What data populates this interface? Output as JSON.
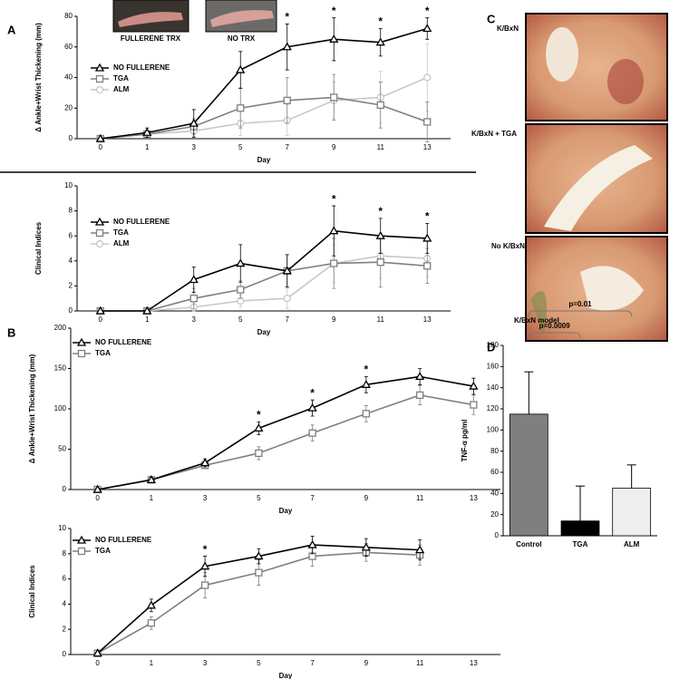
{
  "panel_labels": [
    "A",
    "B",
    "C",
    "D"
  ],
  "photo_labels": [
    "FULLERENE TRX",
    "NO TRX"
  ],
  "histology_labels": [
    "K/BxN",
    "K/BxN + TGA",
    "No K/BxN"
  ],
  "chart_data": [
    {
      "type": "line",
      "xlabel": "Day",
      "ylabel": "Δ Ankle+Wrist Thickening (mm)",
      "categories": [
        "0",
        "1",
        "3",
        "5",
        "7",
        "9",
        "11",
        "13"
      ],
      "ylim": [
        0,
        80
      ],
      "yticks": [
        0,
        20,
        40,
        60,
        80
      ],
      "legend": "upper left",
      "series": [
        {
          "name": "NO FULLERENE",
          "color": "#000000",
          "marker": "triangle",
          "values": [
            0,
            4,
            10,
            45,
            60,
            65,
            63,
            72
          ],
          "errors": [
            0,
            3,
            9,
            12,
            15,
            14,
            9,
            7
          ]
        },
        {
          "name": "TGA",
          "color": "#808080",
          "marker": "square",
          "values": [
            0,
            3,
            8,
            20,
            25,
            27,
            22,
            11
          ],
          "errors": [
            0,
            2,
            5,
            13,
            15,
            15,
            15,
            13
          ]
        },
        {
          "name": "ALM",
          "color": "#c8c8c8",
          "marker": "circle",
          "values": [
            0,
            3,
            5,
            10,
            12,
            25,
            27,
            40
          ],
          "errors": [
            0,
            2,
            4,
            8,
            10,
            12,
            17,
            22
          ]
        }
      ],
      "annotations": [
        {
          "text": "*",
          "x": "7"
        },
        {
          "text": "*",
          "x": "9"
        },
        {
          "text": "*",
          "x": "11"
        },
        {
          "text": "*",
          "x": "13"
        }
      ]
    },
    {
      "type": "line",
      "xlabel": "Day",
      "ylabel": "Clinical Indices",
      "categories": [
        "0",
        "1",
        "3",
        "5",
        "7",
        "9",
        "11",
        "13"
      ],
      "ylim": [
        0,
        10
      ],
      "yticks": [
        0,
        2,
        4,
        6,
        8,
        10
      ],
      "legend": "upper left",
      "series": [
        {
          "name": "NO FULLERENE",
          "color": "#000000",
          "marker": "triangle",
          "values": [
            0,
            0,
            2.5,
            3.8,
            3.2,
            6.4,
            6.0,
            5.8
          ],
          "errors": [
            0,
            0,
            1,
            1.5,
            1.3,
            2,
            1.4,
            1.2
          ]
        },
        {
          "name": "TGA",
          "color": "#808080",
          "marker": "square",
          "values": [
            0,
            0,
            1,
            1.7,
            3.2,
            3.8,
            3.9,
            3.6
          ],
          "errors": [
            0,
            0,
            0.8,
            0.7,
            1.3,
            2,
            2,
            1.4
          ]
        },
        {
          "name": "ALM",
          "color": "#c8c8c8",
          "marker": "circle",
          "values": [
            0,
            0,
            0.3,
            0.8,
            1,
            3.8,
            4.4,
            4.2
          ],
          "errors": [
            0,
            0,
            0.3,
            0.5,
            0.8,
            1.5,
            1.8,
            1.5
          ]
        }
      ],
      "annotations": [
        {
          "text": "*",
          "x": "9"
        },
        {
          "text": "*",
          "x": "11"
        },
        {
          "text": "*",
          "x": "13"
        }
      ]
    },
    {
      "type": "line",
      "xlabel": "Day",
      "ylabel": "Δ Ankle+Wrist Thickening (mm)",
      "categories": [
        "0",
        "1",
        "3",
        "5",
        "7",
        "9",
        "11",
        "13"
      ],
      "ylim": [
        0,
        200
      ],
      "yticks": [
        0,
        50,
        100,
        150,
        200
      ],
      "legend": "upper left",
      "series": [
        {
          "name": "NO FULLERENE",
          "color": "#000000",
          "marker": "triangle",
          "values": [
            0,
            12,
            33,
            76,
            101,
            130,
            140,
            128
          ],
          "errors": [
            0,
            3,
            5,
            8,
            10,
            10,
            10,
            10
          ]
        },
        {
          "name": "TGA",
          "color": "#808080",
          "marker": "square",
          "values": [
            0,
            12,
            30,
            45,
            70,
            94,
            117,
            105
          ],
          "errors": [
            0,
            3,
            4,
            8,
            10,
            10,
            12,
            12
          ]
        }
      ],
      "annotations": [
        {
          "text": "*",
          "x": "5"
        },
        {
          "text": "*",
          "x": "7"
        },
        {
          "text": "*",
          "x": "9"
        }
      ]
    },
    {
      "type": "line",
      "xlabel": "Day",
      "ylabel": "Clinical Indices",
      "categories": [
        "0",
        "1",
        "3",
        "5",
        "7",
        "9",
        "11",
        "13"
      ],
      "ylim": [
        0,
        10
      ],
      "yticks": [
        0,
        2,
        4,
        6,
        8,
        10
      ],
      "legend": "upper left",
      "series": [
        {
          "name": "NO FULLERENE",
          "color": "#000000",
          "marker": "triangle",
          "values": [
            0.1,
            3.9,
            7.0,
            7.8,
            8.7,
            8.5,
            8.3,
            null
          ],
          "errors": [
            0.1,
            0.5,
            0.8,
            0.6,
            0.7,
            0.7,
            0.8,
            null
          ]
        },
        {
          "name": "TGA",
          "color": "#808080",
          "marker": "square",
          "values": [
            0.1,
            2.5,
            5.5,
            6.5,
            7.8,
            8.1,
            7.9,
            null
          ],
          "errors": [
            0.1,
            0.5,
            1,
            1,
            0.8,
            0.7,
            0.8,
            null
          ]
        }
      ],
      "annotations": [
        {
          "text": "*",
          "x": "3"
        }
      ]
    },
    {
      "type": "bar",
      "title": "K/BxN model",
      "ylabel": "TNF-α pg/ml",
      "categories": [
        "Control",
        "TGA",
        "ALM"
      ],
      "values": [
        115,
        14,
        45
      ],
      "errors": [
        40,
        33,
        22
      ],
      "colors": [
        "#7f7f7f",
        "#000000",
        "#efefef"
      ],
      "ylim": [
        0,
        180
      ],
      "yticks": [
        0,
        20,
        40,
        60,
        80,
        100,
        120,
        140,
        160,
        180
      ],
      "annotations": [
        {
          "text": "p=0.0009",
          "from": "Control",
          "to": "TGA"
        },
        {
          "text": "p=0.01",
          "from": "Control",
          "to": "ALM"
        }
      ]
    }
  ]
}
